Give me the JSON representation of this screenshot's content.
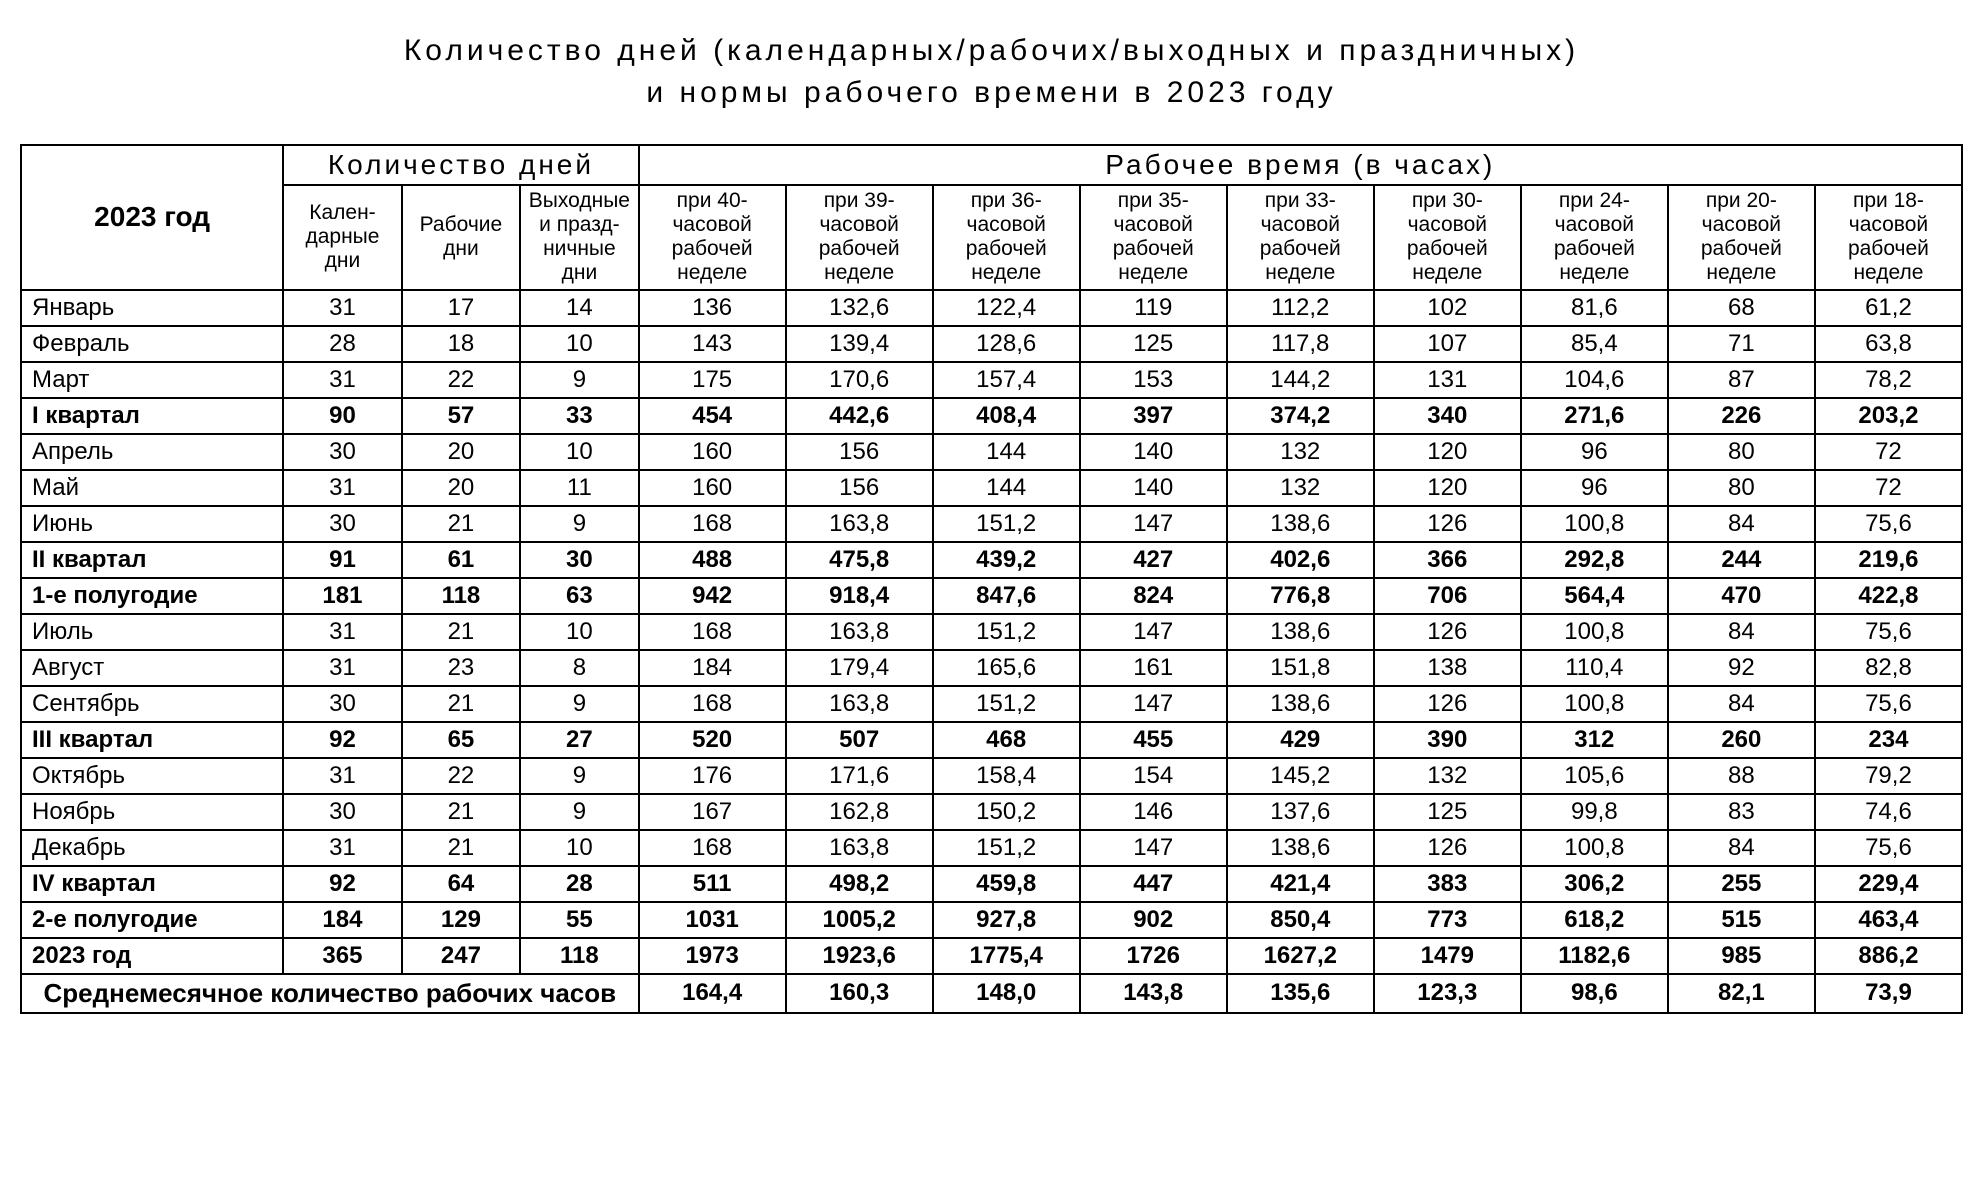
{
  "title_line1": "Количество дней (календарных/рабочих/выходных и праздничных)",
  "title_line2": "и нормы рабочего времени в 2023 году",
  "headers": {
    "year": "2023 год",
    "days_group": "Количество дней",
    "hours_group": "Рабочее время (в часах)",
    "day_cols": [
      "Кален-\nдарные дни",
      "Рабочие дни",
      "Выходные и празд-\nничные дни"
    ],
    "hour_cols": [
      "при 40-часовой рабочей неделе",
      "при 39-часовой рабочей неделе",
      "при 36-часовой рабочей неделе",
      "при 35-часовой рабочей неделе",
      "при 33-часовой рабочей неделе",
      "при 30-часовой рабочей неделе",
      "при 24-часовой рабочей неделе",
      "при 20-часовой рабочей неделе",
      "при 18-часовой рабочей неделе"
    ]
  },
  "rows": [
    {
      "label": "Январь",
      "bold": false,
      "vals": [
        "31",
        "17",
        "14",
        "136",
        "132,6",
        "122,4",
        "119",
        "112,2",
        "102",
        "81,6",
        "68",
        "61,2"
      ]
    },
    {
      "label": "Февраль",
      "bold": false,
      "vals": [
        "28",
        "18",
        "10",
        "143",
        "139,4",
        "128,6",
        "125",
        "117,8",
        "107",
        "85,4",
        "71",
        "63,8"
      ]
    },
    {
      "label": "Март",
      "bold": false,
      "vals": [
        "31",
        "22",
        "9",
        "175",
        "170,6",
        "157,4",
        "153",
        "144,2",
        "131",
        "104,6",
        "87",
        "78,2"
      ]
    },
    {
      "label": "I квартал",
      "bold": true,
      "vals": [
        "90",
        "57",
        "33",
        "454",
        "442,6",
        "408,4",
        "397",
        "374,2",
        "340",
        "271,6",
        "226",
        "203,2"
      ]
    },
    {
      "label": "Апрель",
      "bold": false,
      "vals": [
        "30",
        "20",
        "10",
        "160",
        "156",
        "144",
        "140",
        "132",
        "120",
        "96",
        "80",
        "72"
      ]
    },
    {
      "label": "Май",
      "bold": false,
      "vals": [
        "31",
        "20",
        "11",
        "160",
        "156",
        "144",
        "140",
        "132",
        "120",
        "96",
        "80",
        "72"
      ]
    },
    {
      "label": "Июнь",
      "bold": false,
      "vals": [
        "30",
        "21",
        "9",
        "168",
        "163,8",
        "151,2",
        "147",
        "138,6",
        "126",
        "100,8",
        "84",
        "75,6"
      ]
    },
    {
      "label": "II квартал",
      "bold": true,
      "vals": [
        "91",
        "61",
        "30",
        "488",
        "475,8",
        "439,2",
        "427",
        "402,6",
        "366",
        "292,8",
        "244",
        "219,6"
      ]
    },
    {
      "label": "1-е полугодие",
      "bold": true,
      "vals": [
        "181",
        "118",
        "63",
        "942",
        "918,4",
        "847,6",
        "824",
        "776,8",
        "706",
        "564,4",
        "470",
        "422,8"
      ]
    },
    {
      "label": "Июль",
      "bold": false,
      "vals": [
        "31",
        "21",
        "10",
        "168",
        "163,8",
        "151,2",
        "147",
        "138,6",
        "126",
        "100,8",
        "84",
        "75,6"
      ]
    },
    {
      "label": "Август",
      "bold": false,
      "vals": [
        "31",
        "23",
        "8",
        "184",
        "179,4",
        "165,6",
        "161",
        "151,8",
        "138",
        "110,4",
        "92",
        "82,8"
      ]
    },
    {
      "label": "Сентябрь",
      "bold": false,
      "vals": [
        "30",
        "21",
        "9",
        "168",
        "163,8",
        "151,2",
        "147",
        "138,6",
        "126",
        "100,8",
        "84",
        "75,6"
      ]
    },
    {
      "label": "III квартал",
      "bold": true,
      "vals": [
        "92",
        "65",
        "27",
        "520",
        "507",
        "468",
        "455",
        "429",
        "390",
        "312",
        "260",
        "234"
      ]
    },
    {
      "label": "Октябрь",
      "bold": false,
      "vals": [
        "31",
        "22",
        "9",
        "176",
        "171,6",
        "158,4",
        "154",
        "145,2",
        "132",
        "105,6",
        "88",
        "79,2"
      ]
    },
    {
      "label": "Ноябрь",
      "bold": false,
      "vals": [
        "30",
        "21",
        "9",
        "167",
        "162,8",
        "150,2",
        "146",
        "137,6",
        "125",
        "99,8",
        "83",
        "74,6"
      ]
    },
    {
      "label": "Декабрь",
      "bold": false,
      "vals": [
        "31",
        "21",
        "10",
        "168",
        "163,8",
        "151,2",
        "147",
        "138,6",
        "126",
        "100,8",
        "84",
        "75,6"
      ]
    },
    {
      "label": "IV квартал",
      "bold": true,
      "vals": [
        "92",
        "64",
        "28",
        "511",
        "498,2",
        "459,8",
        "447",
        "421,4",
        "383",
        "306,2",
        "255",
        "229,4"
      ]
    },
    {
      "label": "2-е полугодие",
      "bold": true,
      "vals": [
        "184",
        "129",
        "55",
        "1031",
        "1005,2",
        "927,8",
        "902",
        "850,4",
        "773",
        "618,2",
        "515",
        "463,4"
      ]
    },
    {
      "label": "2023 год",
      "bold": true,
      "vals": [
        "365",
        "247",
        "118",
        "1973",
        "1923,6",
        "1775,4",
        "1726",
        "1627,2",
        "1479",
        "1182,6",
        "985",
        "886,2"
      ]
    }
  ],
  "avg_row": {
    "label": "Среднемесячное количество рабочих часов",
    "vals": [
      "164,4",
      "160,3",
      "148,0",
      "143,8",
      "135,6",
      "123,3",
      "98,6",
      "82,1",
      "73,9"
    ]
  }
}
